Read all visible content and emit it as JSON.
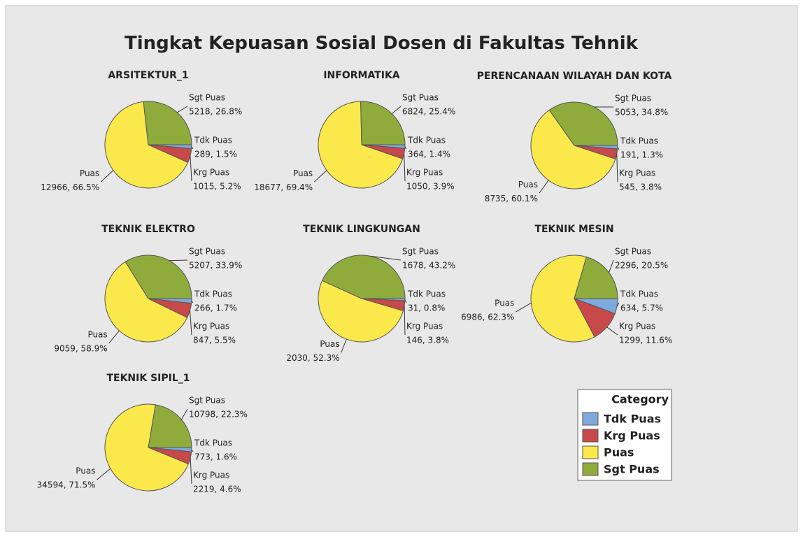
{
  "title": "Tingkat Kepuasan Sosial Dosen di Fakultas Tehnik",
  "legend": {
    "title": "Category",
    "corner": "bottom-right"
  },
  "chart_data": [
    {
      "type": "pie",
      "title": "ARSITEKTUR_1",
      "categories": [
        "Tdk Puas",
        "Krg Puas",
        "Puas",
        "Sgt Puas"
      ],
      "colors": [
        "#7ea9dc",
        "#c8494a",
        "#fbe84b",
        "#8fab3c"
      ],
      "values": [
        289,
        1015,
        12966,
        5218
      ],
      "value_labels": [
        "289, 1.5%",
        "1015, 5.2%",
        "12966, 66.5%",
        "5218, 26.8%"
      ]
    },
    {
      "type": "pie",
      "title": "INFORMATIKA",
      "categories": [
        "Tdk Puas",
        "Krg Puas",
        "Puas",
        "Sgt Puas"
      ],
      "colors": [
        "#7ea9dc",
        "#c8494a",
        "#fbe84b",
        "#8fab3c"
      ],
      "values": [
        364,
        1050,
        18677,
        6824
      ],
      "value_labels": [
        "364, 1.4%",
        "1050, 3.9%",
        "18677, 69.4%",
        "6824, 25.4%"
      ]
    },
    {
      "type": "pie",
      "title": "PERENCANAAN WILAYAH DAN KOTA",
      "categories": [
        "Tdk Puas",
        "Krg Puas",
        "Puas",
        "Sgt Puas"
      ],
      "colors": [
        "#7ea9dc",
        "#c8494a",
        "#fbe84b",
        "#8fab3c"
      ],
      "values": [
        191,
        545,
        8735,
        5053
      ],
      "value_labels": [
        "191, 1.3%",
        "545, 3.8%",
        "8735, 60.1%",
        "5053, 34.8%"
      ]
    },
    {
      "type": "pie",
      "title": "TEKNIK ELEKTRO",
      "categories": [
        "Tdk Puas",
        "Krg Puas",
        "Puas",
        "Sgt Puas"
      ],
      "colors": [
        "#7ea9dc",
        "#c8494a",
        "#fbe84b",
        "#8fab3c"
      ],
      "values": [
        266,
        847,
        9059,
        5207
      ],
      "value_labels": [
        "266, 1.7%",
        "847, 5.5%",
        "9059, 58.9%",
        "5207, 33.9%"
      ]
    },
    {
      "type": "pie",
      "title": "TEKNIK LINGKUNGAN",
      "categories": [
        "Tdk Puas",
        "Krg Puas",
        "Puas",
        "Sgt Puas"
      ],
      "colors": [
        "#7ea9dc",
        "#c8494a",
        "#fbe84b",
        "#8fab3c"
      ],
      "values": [
        31,
        146,
        2030,
        1678
      ],
      "value_labels": [
        "31, 0.8%",
        "146, 3.8%",
        "2030, 52.3%",
        "1678, 43.2%"
      ]
    },
    {
      "type": "pie",
      "title": "TEKNIK MESIN",
      "categories": [
        "Tdk Puas",
        "Krg Puas",
        "Puas",
        "Sgt Puas"
      ],
      "colors": [
        "#7ea9dc",
        "#c8494a",
        "#fbe84b",
        "#8fab3c"
      ],
      "values": [
        634,
        1299,
        6986,
        2296
      ],
      "value_labels": [
        "634, 5.7%",
        "1299, 11.6%",
        "6986, 62.3%",
        "2296, 20.5%"
      ]
    },
    {
      "type": "pie",
      "title": "TEKNIK SIPIL_1",
      "categories": [
        "Tdk Puas",
        "Krg Puas",
        "Puas",
        "Sgt Puas"
      ],
      "colors": [
        "#7ea9dc",
        "#c8494a",
        "#fbe84b",
        "#8fab3c"
      ],
      "values": [
        773,
        2219,
        34594,
        10798
      ],
      "value_labels": [
        "773, 1.6%",
        "2219, 4.6%",
        "34594, 71.5%",
        "10798, 22.3%"
      ]
    }
  ]
}
